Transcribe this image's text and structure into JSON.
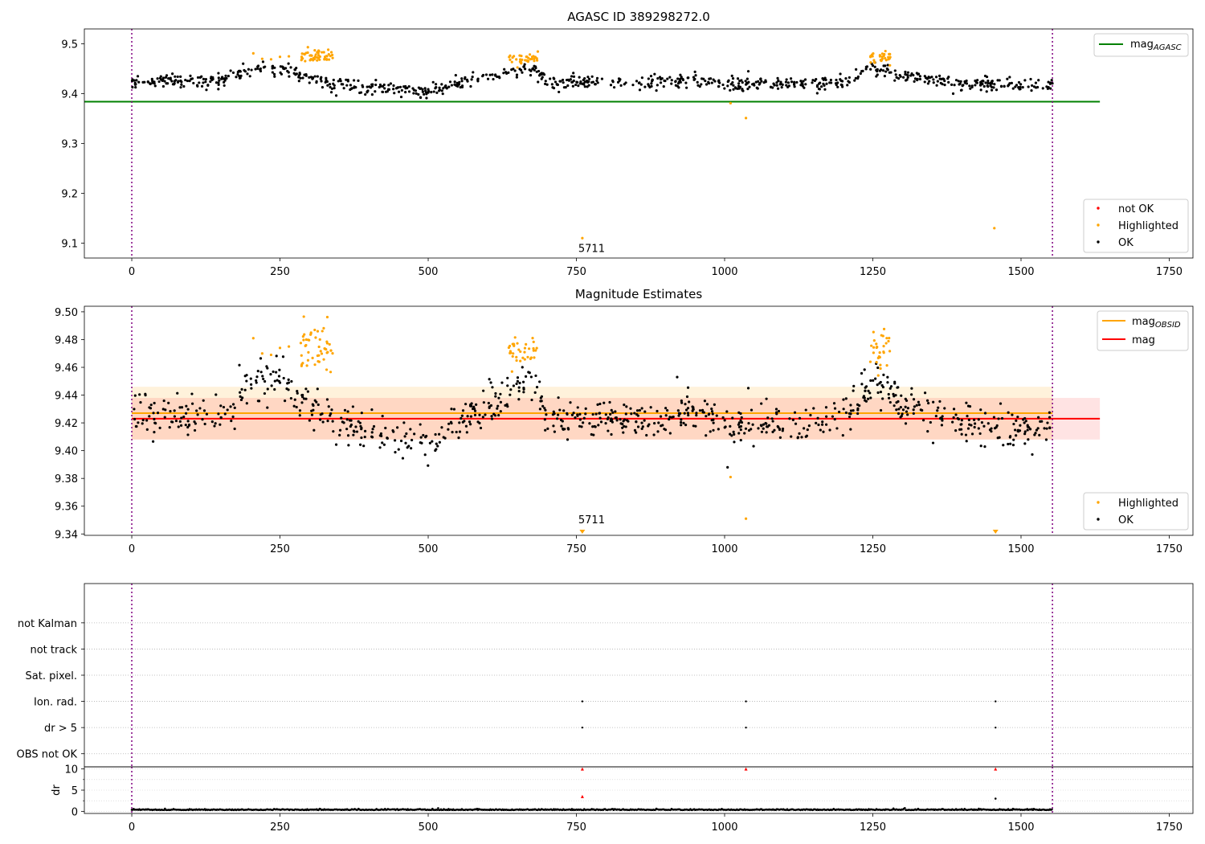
{
  "chart_data": [
    {
      "type": "scatter",
      "title": "AGASC ID 389298272.0",
      "xlim": [
        -80,
        1790
      ],
      "ylim": [
        9.07,
        9.53
      ],
      "xticks": [
        0,
        250,
        500,
        750,
        1000,
        1250,
        1500,
        1750
      ],
      "yticks": [
        9.1,
        9.2,
        9.3,
        9.4,
        9.5
      ],
      "ytick_format": 1,
      "vlines": [
        0,
        1553
      ],
      "hlines": [
        {
          "name": "mag_AGASC",
          "y": 9.384,
          "x": [
            -80,
            1633
          ],
          "color": "#008000"
        }
      ],
      "legend_lines": [
        {
          "label": "mag",
          "sub": "AGASC",
          "color": "#008000"
        }
      ],
      "legend_markers": [
        {
          "label": "not OK",
          "color": "#ff0000"
        },
        {
          "label": "Highlighted",
          "color": "#ffa500"
        },
        {
          "label": "OK",
          "color": "#000000"
        }
      ],
      "series": [
        {
          "name": "OK",
          "color": "#000000",
          "profile": [
            [
              0,
              9.423
            ],
            [
              150,
              9.427
            ],
            [
              200,
              9.449
            ],
            [
              250,
              9.452
            ],
            [
              340,
              9.418
            ],
            [
              420,
              9.412
            ],
            [
              500,
              9.405
            ],
            [
              560,
              9.424
            ],
            [
              630,
              9.438
            ],
            [
              680,
              9.452
            ],
            [
              700,
              9.424
            ],
            [
              900,
              9.422
            ],
            [
              950,
              9.428
            ],
            [
              1000,
              9.417
            ],
            [
              1200,
              9.421
            ],
            [
              1250,
              9.452
            ],
            [
              1290,
              9.437
            ],
            [
              1400,
              9.42
            ],
            [
              1553,
              9.415
            ]
          ],
          "noise": 0.007,
          "count": 850,
          "range": [
            0,
            1553
          ],
          "outliers": [
            [
              1040,
              9.445
            ]
          ]
        },
        {
          "name": "Highlighted",
          "color": "#ffa500",
          "clusters": [
            [
              285,
              340,
              9.475,
              0.008,
              50
            ],
            [
              635,
              685,
              9.47,
              0.006,
              35
            ],
            [
              1245,
              1280,
              9.475,
              0.008,
              30
            ]
          ],
          "points": [
            [
              205,
              9.481
            ],
            [
              220,
              9.47
            ],
            [
              235,
              9.469
            ],
            [
              250,
              9.474
            ],
            [
              265,
              9.475
            ],
            [
              760,
              9.11
            ],
            [
              1010,
              9.381
            ],
            [
              1036,
              9.351
            ],
            [
              1455,
              9.13
            ]
          ]
        },
        {
          "name": "not OK",
          "color": "#ff0000",
          "points": []
        }
      ],
      "annotations": [
        {
          "text": "5711",
          "x": 760,
          "y": 9.085
        }
      ]
    },
    {
      "type": "scatter",
      "title": "Magnitude Estimates",
      "xlim": [
        -80,
        1790
      ],
      "ylim": [
        9.339,
        9.504
      ],
      "xticks": [
        0,
        250,
        500,
        750,
        1000,
        1250,
        1500,
        1750
      ],
      "yticks": [
        9.34,
        9.36,
        9.38,
        9.4,
        9.42,
        9.44,
        9.46,
        9.48,
        9.5
      ],
      "ytick_format": 2,
      "vlines": [
        0,
        1553
      ],
      "bands": [
        {
          "name": "mag_OBSID range",
          "y": [
            9.408,
            9.446
          ],
          "x": [
            0,
            1553
          ],
          "color": "#ffa500",
          "opacity": 0.14
        },
        {
          "name": "mag range",
          "y": [
            9.408,
            9.438
          ],
          "x": [
            0,
            1633
          ],
          "color": "#ff0000",
          "opacity": 0.11
        }
      ],
      "hlines": [
        {
          "name": "mag_OBSID",
          "y": 9.427,
          "x": [
            0,
            1553
          ],
          "color": "#ffa500"
        },
        {
          "name": "mag",
          "y": 9.423,
          "x": [
            0,
            1633
          ],
          "color": "#ff0000"
        }
      ],
      "legend_lines": [
        {
          "label": "mag",
          "sub": "OBSID",
          "color": "#ffa500"
        },
        {
          "label": "mag",
          "sub": "",
          "color": "#ff0000"
        }
      ],
      "legend_markers": [
        {
          "label": "Highlighted",
          "color": "#ffa500"
        },
        {
          "label": "OK",
          "color": "#000000"
        }
      ],
      "series": [
        {
          "name": "OK",
          "color": "#000000",
          "profile": [
            [
              0,
              9.423
            ],
            [
              150,
              9.427
            ],
            [
              200,
              9.449
            ],
            [
              250,
              9.452
            ],
            [
              340,
              9.418
            ],
            [
              420,
              9.412
            ],
            [
              500,
              9.405
            ],
            [
              560,
              9.424
            ],
            [
              630,
              9.438
            ],
            [
              680,
              9.452
            ],
            [
              700,
              9.424
            ],
            [
              900,
              9.422
            ],
            [
              950,
              9.428
            ],
            [
              1000,
              9.417
            ],
            [
              1200,
              9.421
            ],
            [
              1250,
              9.452
            ],
            [
              1290,
              9.437
            ],
            [
              1400,
              9.42
            ],
            [
              1553,
              9.415
            ]
          ],
          "noise": 0.007,
          "count": 850,
          "range": [
            0,
            1553
          ],
          "outliers": [
            [
              1040,
              9.445
            ],
            [
              920,
              9.453
            ],
            [
              1005,
              9.388
            ]
          ]
        },
        {
          "name": "Highlighted",
          "color": "#ffa500",
          "clusters": [
            [
              285,
              340,
              9.475,
              0.008,
              50
            ],
            [
              635,
              685,
              9.47,
              0.006,
              35
            ],
            [
              1245,
              1280,
              9.475,
              0.008,
              30
            ]
          ],
          "points": [
            [
              205,
              9.481
            ],
            [
              220,
              9.47
            ],
            [
              235,
              9.469
            ],
            [
              250,
              9.474
            ],
            [
              265,
              9.475
            ],
            [
              1010,
              9.381
            ],
            [
              1036,
              9.351
            ]
          ]
        }
      ],
      "clipped_markers": [
        {
          "x": 760,
          "color": "#ffa500"
        },
        {
          "x": 1457,
          "color": "#ffa500"
        }
      ],
      "annotations": [
        {
          "text": "5711",
          "x": 760,
          "y": 9.343
        }
      ]
    },
    {
      "type": "scatter",
      "title": "",
      "xlim": [
        -80,
        1790
      ],
      "ylim": [
        -0.5,
        6.5
      ],
      "xticks": [],
      "yticks": [],
      "vlines": [
        0,
        1553
      ],
      "category_labels": [
        "not Kalman",
        "not track",
        "Sat. pixel.",
        "Ion. rad.",
        "dr > 5",
        "OBS not OK"
      ],
      "category_y": [
        5,
        4,
        3,
        2,
        1,
        0
      ],
      "points": [
        [
          760,
          2
        ],
        [
          1036,
          2
        ],
        [
          1457,
          2
        ],
        [
          760,
          1
        ],
        [
          1036,
          1
        ],
        [
          1457,
          1
        ]
      ]
    },
    {
      "type": "scatter",
      "title": "",
      "ylabel": "dr",
      "xlim": [
        -80,
        1790
      ],
      "ylim": [
        -0.5,
        10.5
      ],
      "xticks": [
        0,
        250,
        500,
        750,
        1000,
        1250,
        1500,
        1750
      ],
      "yticks": [
        0,
        5,
        10
      ],
      "ytick_format": 0,
      "vlines": [
        0,
        1553
      ],
      "base_level": 0.3,
      "red_markers": [
        [
          760,
          10
        ],
        [
          1036,
          10
        ],
        [
          1457,
          10
        ],
        [
          760,
          3.5
        ]
      ],
      "black_points": [
        [
          1457,
          3
        ]
      ]
    }
  ]
}
